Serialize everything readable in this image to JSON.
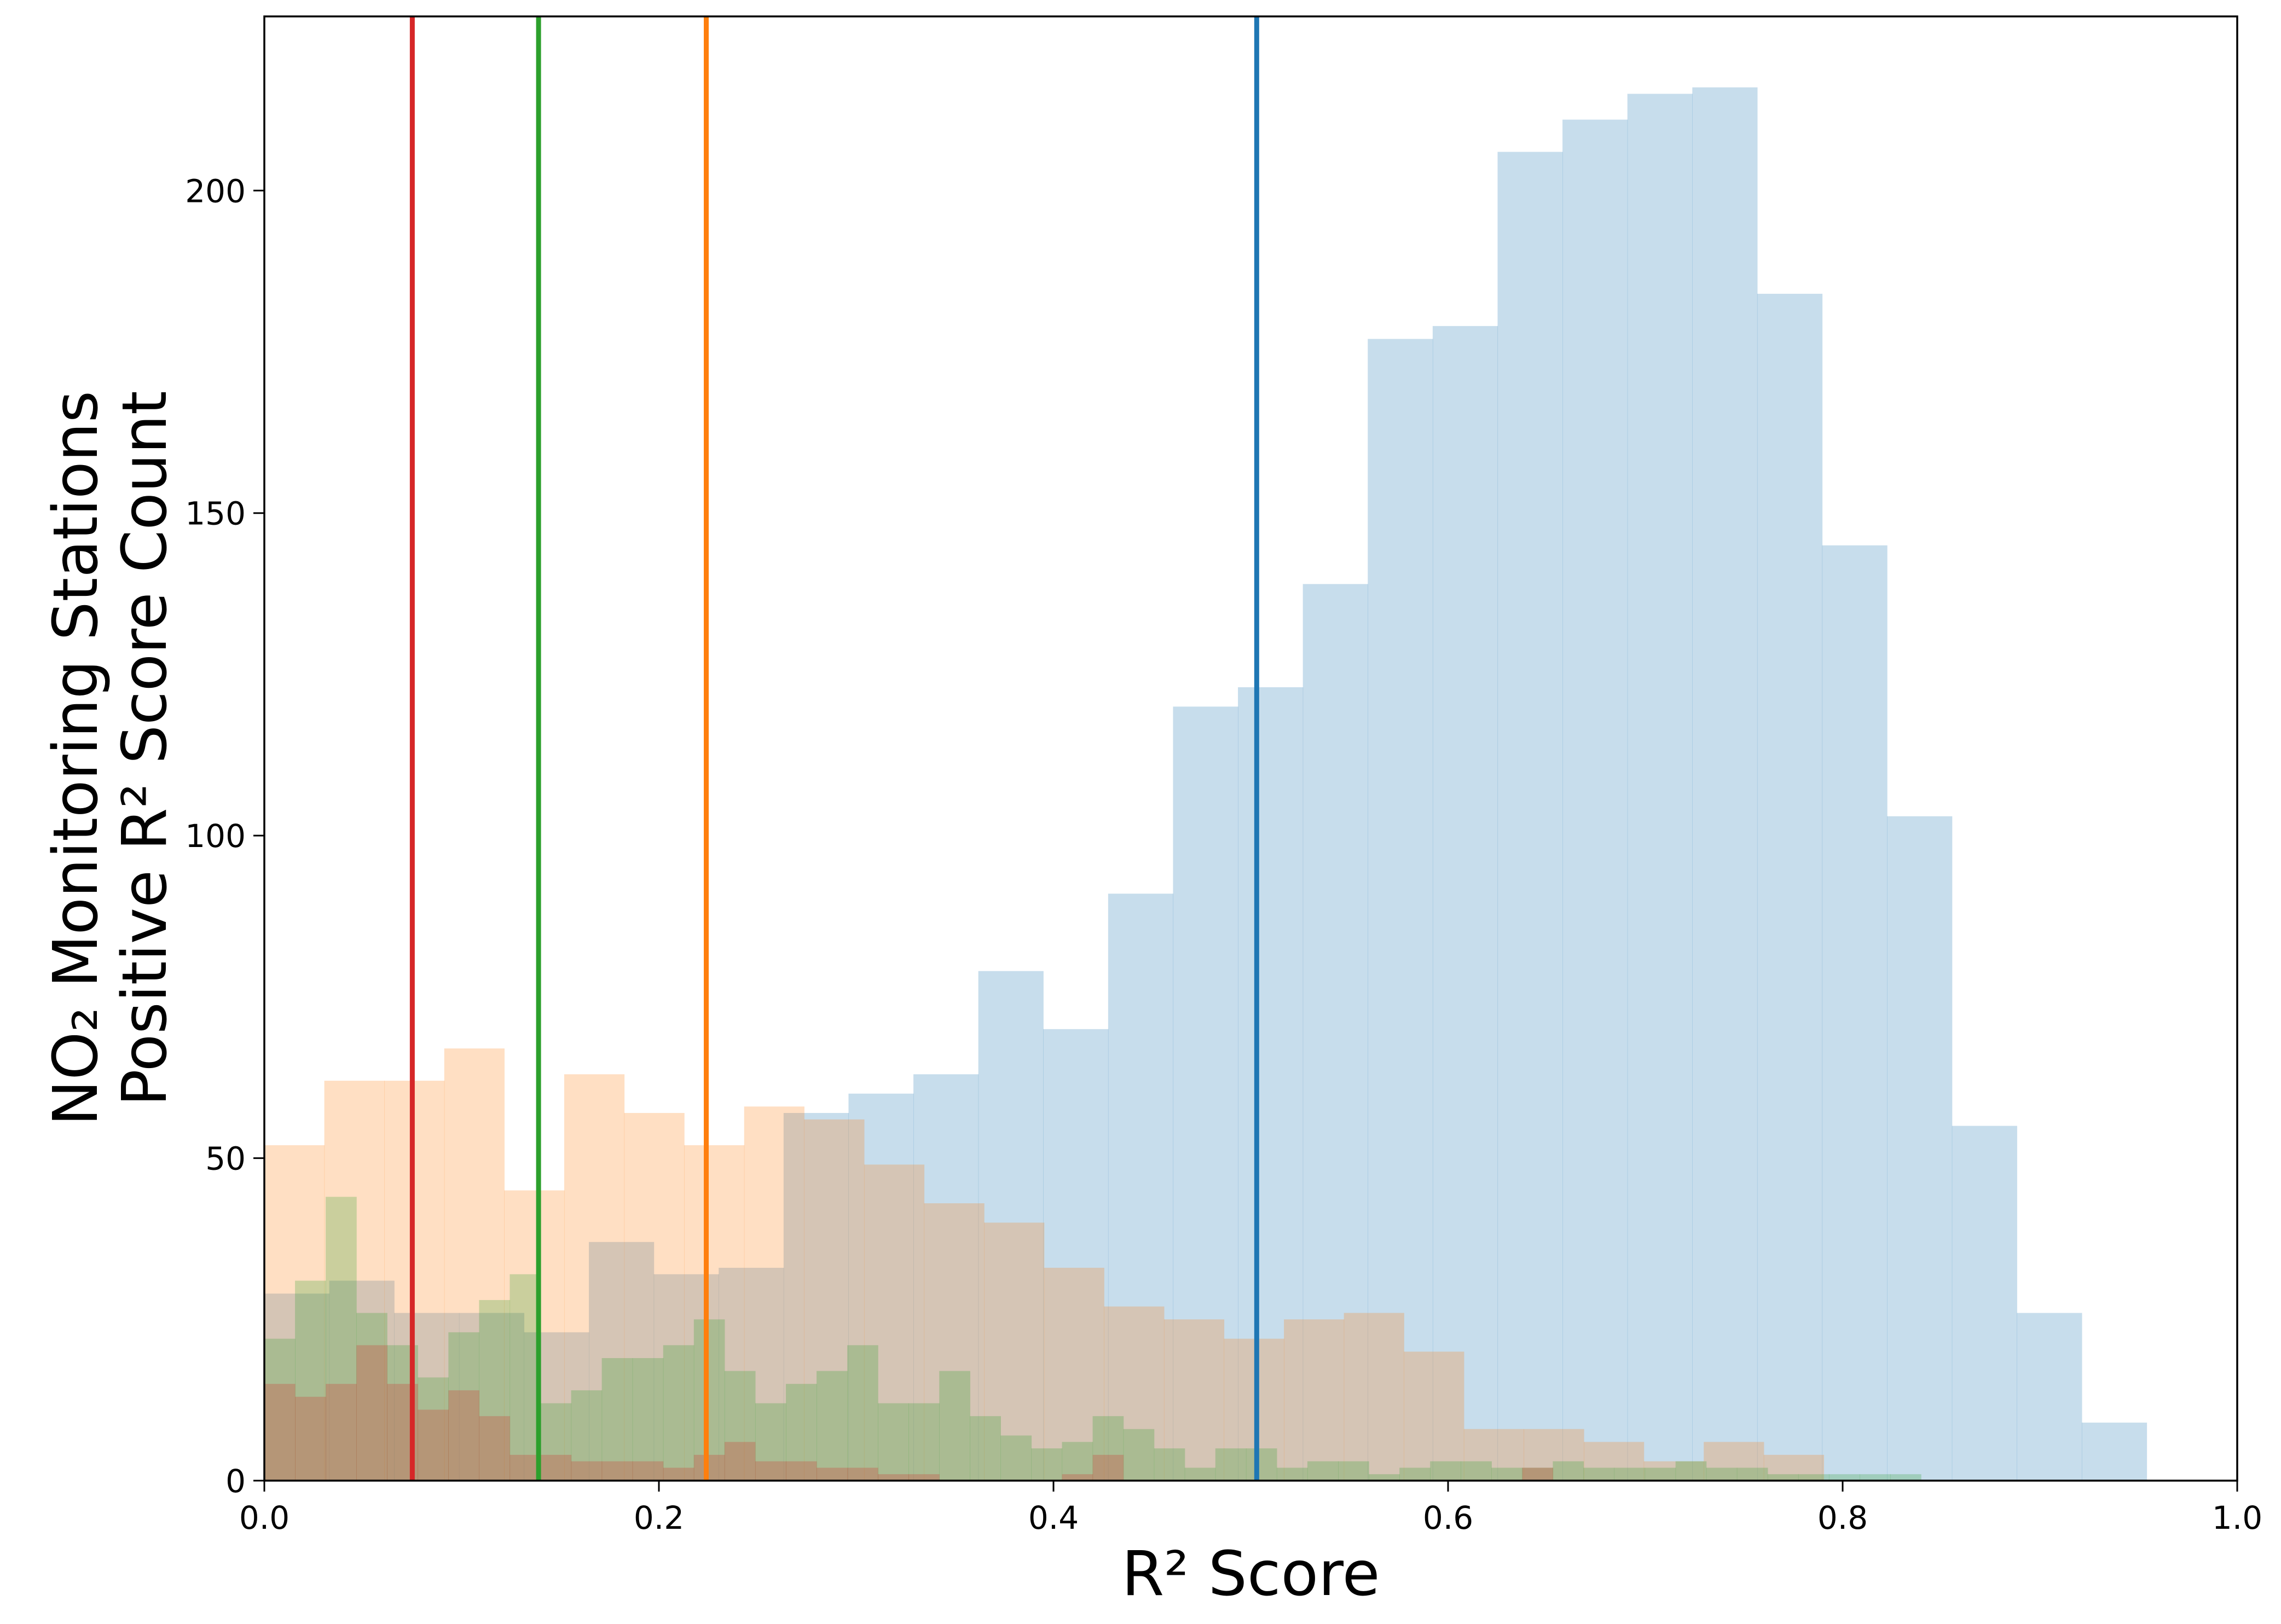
{
  "chart_data": {
    "type": "histogram",
    "xlabel": "R² Score",
    "ylabel": [
      "NO₂ Monitoring Stations",
      "Positive R² Score Count"
    ],
    "xlim": [
      0.0,
      1.0
    ],
    "ylim": [
      0,
      227
    ],
    "xticks": [
      0.0,
      0.2,
      0.4,
      0.6,
      0.8,
      1.0
    ],
    "xtick_labels": [
      "0.0",
      "0.2",
      "0.4",
      "0.6",
      "0.8",
      "1.0"
    ],
    "yticks": [
      0,
      50,
      100,
      150,
      200
    ],
    "ytick_labels": [
      "0",
      "50",
      "100",
      "150",
      "200"
    ],
    "grid": false,
    "legend": null,
    "series": [
      {
        "color": "#1f77b4",
        "opacity": 0.25,
        "bin_start": 0.0,
        "bin_width": 0.0329,
        "values": [
          29,
          31,
          26,
          26,
          23,
          37,
          32,
          33,
          57,
          60,
          63,
          79,
          70,
          91,
          120,
          123,
          139,
          177,
          179,
          206,
          211,
          215,
          216,
          184,
          145,
          103,
          55,
          26,
          9
        ],
        "mean_line": 0.503
      },
      {
        "color": "#ff7f0e",
        "opacity": 0.25,
        "bin_start": 0.0,
        "bin_width": 0.0304,
        "values": [
          52,
          62,
          62,
          67,
          45,
          63,
          57,
          52,
          58,
          56,
          49,
          43,
          40,
          33,
          27,
          25,
          22,
          25,
          26,
          20,
          8,
          8,
          6,
          3,
          6,
          4
        ],
        "mean_line": 0.224
      },
      {
        "color": "#2ca02c",
        "opacity": 0.25,
        "bin_start": 0.0,
        "bin_width": 0.01555,
        "values": [
          22,
          31,
          44,
          26,
          21,
          16,
          23,
          28,
          32,
          12,
          14,
          19,
          19,
          21,
          25,
          17,
          12,
          15,
          17,
          21,
          12,
          12,
          17,
          10,
          7,
          5,
          6,
          10,
          8,
          5,
          2,
          5,
          5,
          2,
          3,
          3,
          1,
          2,
          3,
          3,
          2,
          2,
          3,
          2,
          2,
          2,
          3,
          2,
          2,
          1,
          1,
          1,
          1,
          1
        ],
        "mean_line": 0.139
      },
      {
        "color": "#d62728",
        "opacity": 0.25,
        "bin_start": 0.0,
        "bin_width": 0.01555,
        "values": [
          15,
          13,
          15,
          21,
          15,
          11,
          14,
          10,
          4,
          4,
          3,
          3,
          3,
          2,
          4,
          6,
          3,
          3,
          2,
          2,
          1,
          1,
          0,
          0,
          0,
          0,
          1,
          4,
          0,
          0,
          0,
          0,
          0,
          0,
          0,
          0,
          0,
          0,
          0,
          0,
          0,
          2
        ],
        "mean_line": 0.075
      }
    ]
  }
}
